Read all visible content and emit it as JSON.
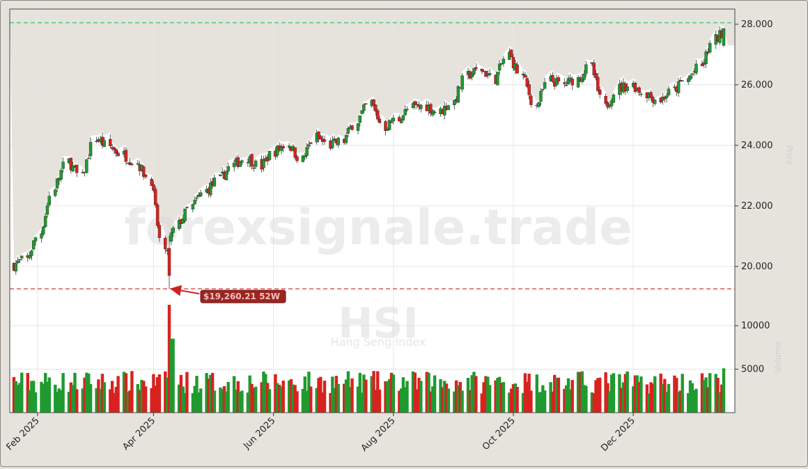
{
  "chart_data": {
    "type": "candlestick",
    "watermark": {
      "site": "forexsignale.trade",
      "symbol": "HSI",
      "name": "Hang Seng Index"
    },
    "y_axis_label": "Price",
    "volume_axis_label": "Volume",
    "x_ticks": [
      "Feb 2025",
      "Apr 2025",
      "Jun 2025",
      "Aug 2025",
      "Oct 2025",
      "Dec 2025"
    ],
    "x_tick_dates": [
      "2025-02-01",
      "2025-04-01",
      "2025-06-01",
      "2025-08-01",
      "2025-10-01",
      "2025-12-01"
    ],
    "x_range": [
      "2025-01-20",
      "2026-01-16"
    ],
    "price_ticks": [
      20000,
      22000,
      24000,
      26000,
      28000
    ],
    "price_tick_labels": [
      "20.000",
      "22.000",
      "24.000",
      "26.000",
      "28.000"
    ],
    "price_range": [
      18850,
      28500
    ],
    "volume_ticks": [
      5000,
      10000
    ],
    "volume_tick_labels": [
      "5000",
      "10000"
    ],
    "volume_range": [
      0,
      12800
    ],
    "high_line": 28050,
    "low_line": 19260.21,
    "low_annotation": {
      "label": "$19,260.21 52W",
      "date": "2025-04-09",
      "price": 19260.21
    },
    "weekly_close": [
      [
        "2025-01-20",
        20050
      ],
      [
        "2025-01-27",
        20230
      ],
      [
        "2025-02-03",
        21130
      ],
      [
        "2025-02-10",
        22620
      ],
      [
        "2025-02-17",
        23470
      ],
      [
        "2025-02-24",
        22940
      ],
      [
        "2025-03-03",
        24230
      ],
      [
        "2025-03-10",
        23960
      ],
      [
        "2025-03-17",
        23690
      ],
      [
        "2025-03-24",
        23430
      ],
      [
        "2025-03-31",
        22850
      ],
      [
        "2025-04-07",
        20400
      ],
      [
        "2025-04-14",
        21400
      ],
      [
        "2025-04-21",
        21980
      ],
      [
        "2025-04-28",
        22500
      ],
      [
        "2025-05-05",
        22870
      ],
      [
        "2025-05-12",
        23350
      ],
      [
        "2025-05-19",
        23600
      ],
      [
        "2025-05-26",
        23300
      ],
      [
        "2025-06-02",
        23800
      ],
      [
        "2025-06-09",
        24050
      ],
      [
        "2025-06-16",
        23530
      ],
      [
        "2025-06-23",
        24280
      ],
      [
        "2025-06-30",
        24000
      ],
      [
        "2025-07-07",
        24150
      ],
      [
        "2025-07-14",
        24820
      ],
      [
        "2025-07-21",
        25400
      ],
      [
        "2025-07-28",
        24600
      ],
      [
        "2025-08-04",
        24880
      ],
      [
        "2025-08-11",
        25250
      ],
      [
        "2025-08-18",
        25300
      ],
      [
        "2025-08-25",
        25100
      ],
      [
        "2025-09-01",
        25450
      ],
      [
        "2025-09-08",
        26300
      ],
      [
        "2025-09-15",
        26500
      ],
      [
        "2025-09-22",
        26200
      ],
      [
        "2025-09-29",
        27000
      ],
      [
        "2025-10-06",
        26300
      ],
      [
        "2025-10-13",
        25300
      ],
      [
        "2025-10-20",
        26150
      ],
      [
        "2025-10-27",
        26000
      ],
      [
        "2025-11-03",
        26200
      ],
      [
        "2025-11-10",
        26600
      ],
      [
        "2025-11-17",
        25250
      ],
      [
        "2025-11-24",
        25900
      ],
      [
        "2025-12-01",
        26000
      ],
      [
        "2025-12-08",
        25700
      ],
      [
        "2025-12-15",
        25500
      ],
      [
        "2025-12-22",
        25800
      ],
      [
        "2025-12-29",
        26200
      ],
      [
        "2026-01-05",
        26600
      ],
      [
        "2026-01-12",
        27500
      ]
    ]
  }
}
